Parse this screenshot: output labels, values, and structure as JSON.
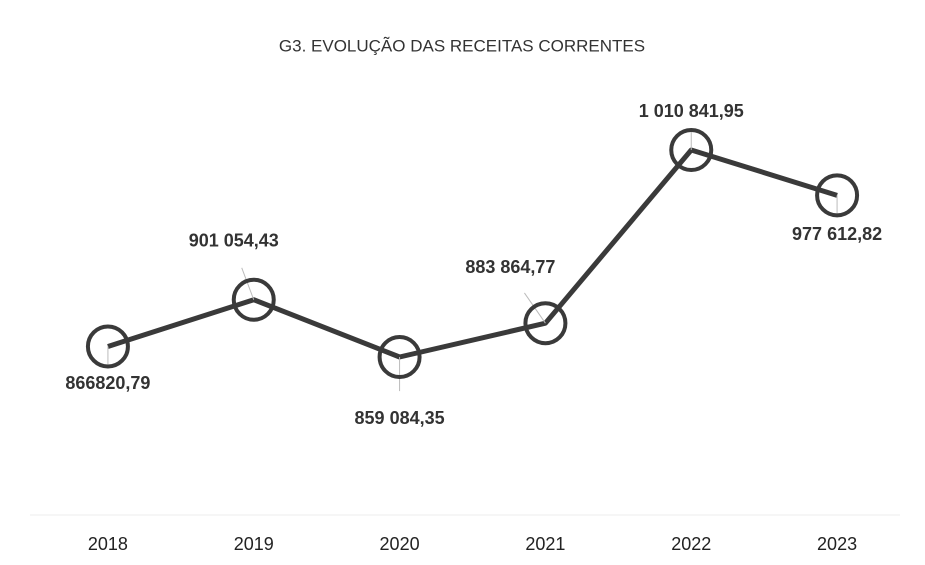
{
  "chart_data": {
    "type": "line",
    "title": "G3. EVOLUÇÃO DAS RECEITAS CORRENTES",
    "categories": [
      "2018",
      "2019",
      "2020",
      "2021",
      "2022",
      "2023"
    ],
    "series": [
      {
        "name": "Receitas correntes",
        "color": "#3a3a3a",
        "values": [
          866820.79,
          901054.43,
          859084.35,
          883864.77,
          1010841.95,
          977612.82
        ],
        "value_labels": [
          "866820,79",
          "901 054,43",
          "859 084,35",
          "883 864,77",
          "1 010 841,95",
          "977 612,82"
        ]
      }
    ]
  }
}
